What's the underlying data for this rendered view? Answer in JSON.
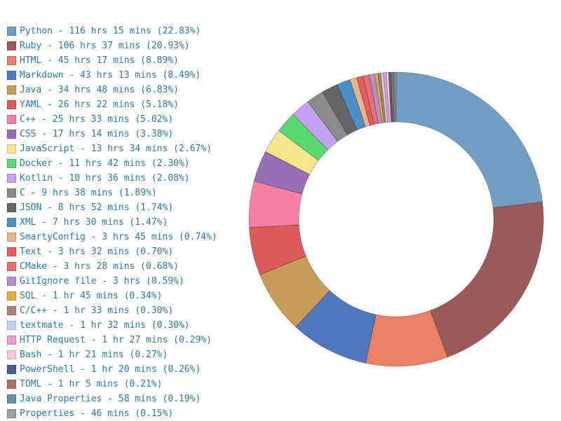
{
  "chart_data": {
    "type": "pie",
    "donut": true,
    "legend_position": "left",
    "start_angle": "top",
    "direction": "clockwise",
    "slices": [
      {
        "label": "Python - 116 hrs 15 mins (22.83%)",
        "name": "Python",
        "value": 22.83,
        "color": "#729ec4"
      },
      {
        "label": "Ruby - 106 hrs 37 mins (20.93%)",
        "name": "Ruby",
        "value": 20.93,
        "color": "#9b5a5a"
      },
      {
        "label": "HTML - 45 hrs 17 mins (8.89%)",
        "name": "HTML",
        "value": 8.89,
        "color": "#ec8064"
      },
      {
        "label": "Markdown - 43 hrs 13 mins (8.49%)",
        "name": "Markdown",
        "value": 8.49,
        "color": "#5078be"
      },
      {
        "label": "Java - 34 hrs 48 mins (6.83%)",
        "name": "Java",
        "value": 6.83,
        "color": "#c89b5a"
      },
      {
        "label": "YAML - 26 hrs 22 mins (5.18%)",
        "name": "YAML",
        "value": 5.18,
        "color": "#dc5a5a"
      },
      {
        "label": "C++ - 25 hrs 33 mins (5.02%)",
        "name": "C++",
        "value": 5.02,
        "color": "#f580a3"
      },
      {
        "label": "CSS - 17 hrs 14 mins (3.38%)",
        "name": "CSS",
        "value": 3.38,
        "color": "#9570b8"
      },
      {
        "label": "JavaScript - 13 hrs 34 mins (2.67%)",
        "name": "JavaScript",
        "value": 2.67,
        "color": "#f5e68c"
      },
      {
        "label": "Docker - 11 hrs 42 mins (2.30%)",
        "name": "Docker",
        "value": 2.3,
        "color": "#5ad970"
      },
      {
        "label": "Kotlin - 10 hrs 36 mins (2.08%)",
        "name": "Kotlin",
        "value": 2.08,
        "color": "#c3a2f7"
      },
      {
        "label": "C - 9 hrs 38 mins (1.89%)",
        "name": "C",
        "value": 1.89,
        "color": "#8a8a8a"
      },
      {
        "label": "JSON - 8 hrs 52 mins (1.74%)",
        "name": "JSON",
        "value": 1.74,
        "color": "#666666"
      },
      {
        "label": "XML - 7 hrs 30 mins (1.47%)",
        "name": "XML",
        "value": 1.47,
        "color": "#4a8fc8"
      },
      {
        "label": "SmartyConfig - 3 hrs 45 mins (0.74%)",
        "name": "SmartyConfig",
        "value": 0.74,
        "color": "#e8b48a"
      },
      {
        "label": "Text - 3 hrs 32 mins (0.70%)",
        "name": "Text",
        "value": 0.7,
        "color": "#e05e5e"
      },
      {
        "label": "CMake - 3 hrs 28 mins (0.68%)",
        "name": "CMake",
        "value": 0.68,
        "color": "#e87070"
      },
      {
        "label": "GitIgnore file - 3 hrs (0.59%)",
        "name": "GitIgnore file",
        "value": 0.59,
        "color": "#b090d0"
      },
      {
        "label": "SQL - 1 hr 45 mins (0.34%)",
        "name": "SQL",
        "value": 0.34,
        "color": "#eaa840"
      },
      {
        "label": "C/C++ - 1 hr 33 mins (0.30%)",
        "name": "C/C++",
        "value": 0.3,
        "color": "#a88078"
      },
      {
        "label": "textmate - 1 hr 32 mins (0.30%)",
        "name": "textmate",
        "value": 0.3,
        "color": "#c4d4ec"
      },
      {
        "label": "HTTP Request - 1 hr 27 mins (0.29%)",
        "name": "HTTP Request",
        "value": 0.29,
        "color": "#ec9ed0"
      },
      {
        "label": "Bash - 1 hr 21 mins (0.27%)",
        "name": "Bash",
        "value": 0.27,
        "color": "#f5c8dc"
      },
      {
        "label": "PowerShell - 1 hr 20 mins (0.26%)",
        "name": "PowerShell",
        "value": 0.26,
        "color": "#4a6088"
      },
      {
        "label": "TOML - 1 hr 5 mins (0.21%)",
        "name": "TOML",
        "value": 0.21,
        "color": "#b07060"
      },
      {
        "label": "Java Properties - 58 mins (0.19%)",
        "name": "Java Properties",
        "value": 0.19,
        "color": "#6890a0"
      },
      {
        "label": "Properties - 46 mins (0.15%)",
        "name": "Properties",
        "value": 0.15,
        "color": "#a0a0a0"
      }
    ]
  }
}
